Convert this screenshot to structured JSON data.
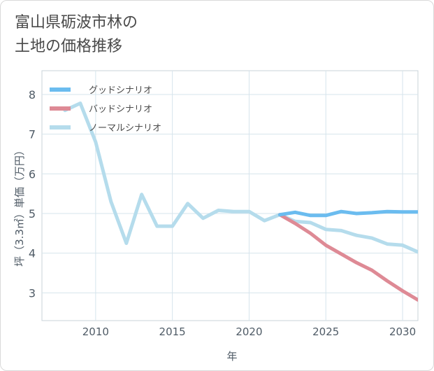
{
  "title_lines": [
    "富山県砺波市林の",
    "土地の価格推移"
  ],
  "chart_data": {
    "type": "line",
    "xlabel": "年",
    "ylabel": "坪（3.3㎡）単価（万円）",
    "xlim": [
      2006.5,
      2031
    ],
    "ylim": [
      2.3,
      8.6
    ],
    "xticks": [
      2010,
      2015,
      2020,
      2025,
      2030
    ],
    "yticks": [
      3,
      4,
      5,
      6,
      7,
      8
    ],
    "grid": true,
    "legend_position": "top-left",
    "series": [
      {
        "name": "グッドシナリオ",
        "color": "#6bbcef",
        "x": [
          2022,
          2023,
          2024,
          2025,
          2026,
          2027,
          2028,
          2029,
          2030,
          2031
        ],
        "values": [
          4.97,
          5.03,
          4.95,
          4.95,
          5.05,
          5.0,
          5.02,
          5.05,
          5.04,
          5.04
        ]
      },
      {
        "name": "バッドシナリオ",
        "color": "#de8a95",
        "x": [
          2022,
          2023,
          2024,
          2025,
          2026,
          2027,
          2028,
          2029,
          2030,
          2031
        ],
        "values": [
          4.97,
          4.75,
          4.5,
          4.2,
          3.98,
          3.76,
          3.57,
          3.3,
          3.05,
          2.82
        ]
      },
      {
        "name": "ノーマルシナリオ",
        "color": "#b5dcec",
        "x": [
          2008,
          2009,
          2010,
          2011,
          2012,
          2013,
          2014,
          2015,
          2016,
          2017,
          2018,
          2019,
          2020,
          2021,
          2022,
          2023,
          2024,
          2025,
          2026,
          2027,
          2028,
          2029,
          2030,
          2031
        ],
        "values": [
          7.6,
          7.78,
          6.8,
          5.3,
          4.25,
          5.48,
          4.68,
          4.68,
          5.25,
          4.88,
          5.08,
          5.05,
          5.05,
          4.82,
          4.97,
          4.8,
          4.77,
          4.6,
          4.57,
          4.45,
          4.38,
          4.23,
          4.2,
          4.03
        ]
      }
    ]
  }
}
